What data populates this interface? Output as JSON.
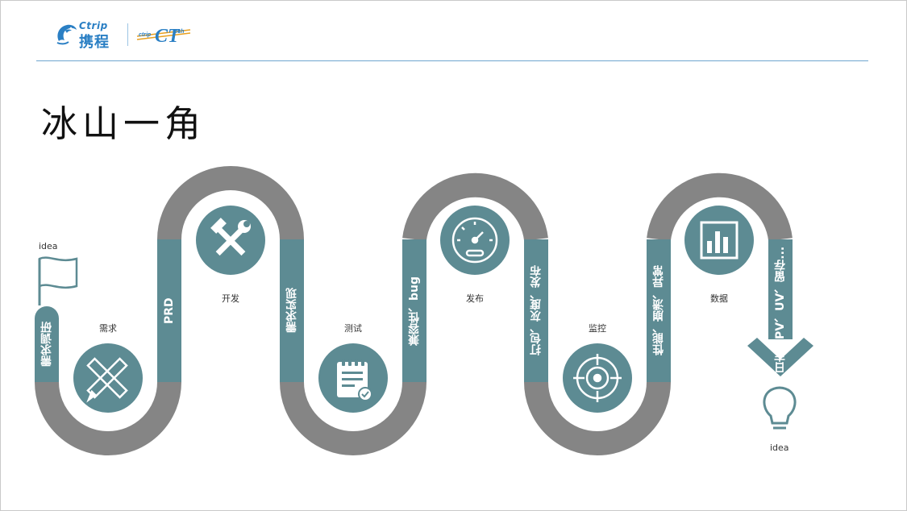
{
  "slide": {
    "title": "冰山一角",
    "logo": {
      "ctrip_en": "Ctrip",
      "ctrip_cn": "携程",
      "ct_tech": "ctrip tech"
    }
  },
  "diagram": {
    "start_label": "idea",
    "end_label": "idea",
    "stages": [
      "需求",
      "开发",
      "测试",
      "发布",
      "监控",
      "数据"
    ],
    "segments": [
      "需求调研",
      "PRD",
      "需求实现",
      "兼容性、bug",
      "打包、灰度、发布",
      "性能、崩溃、异常",
      "日志、PV、UV、留存..."
    ],
    "icons": [
      "pencil-ruler-icon",
      "hammer-wrench-icon",
      "notepad-check-icon",
      "gauge-icon",
      "target-icon",
      "bar-chart-icon"
    ],
    "colors": {
      "road_gray": "#858585",
      "teal": "#5d8b93",
      "accent_blue": "#2a7fc4",
      "text": "#333333"
    }
  }
}
